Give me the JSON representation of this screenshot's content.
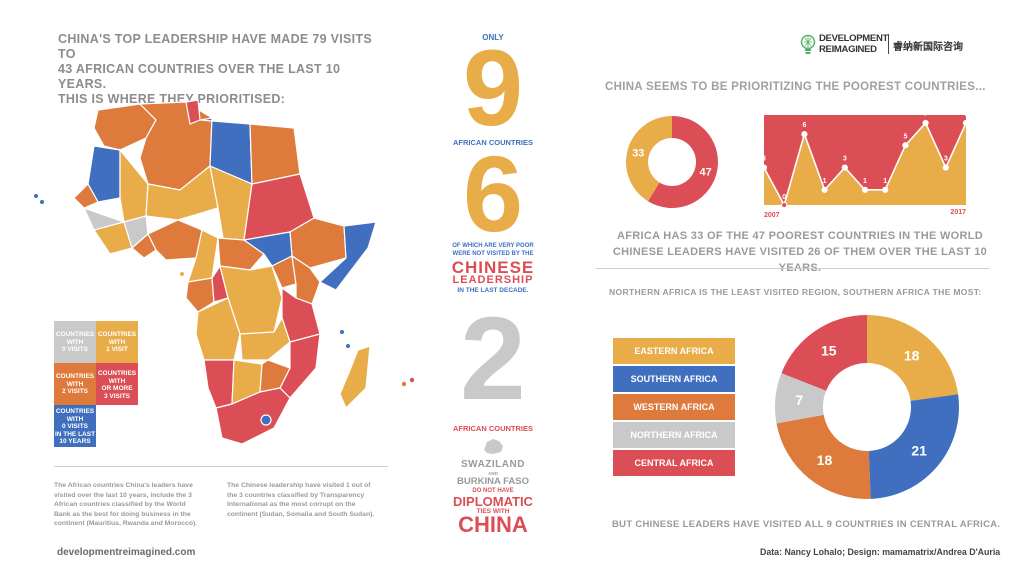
{
  "colors": {
    "yellow": "#E8AC48",
    "orange": "#DE7A3B",
    "red": "#DC4E56",
    "blue": "#3F6FBE",
    "gray": "#C9C9C9",
    "heading_gray": "#8c8c8c",
    "text_gray": "#7a7a7a"
  },
  "left": {
    "title_lines": [
      "CHINA'S TOP LEADERSHIP HAVE MADE 79 VISITS TO",
      "43 AFRICAN COUNTRIES OVER THE LAST 10 YEARS.",
      "THIS IS WHERE THEY PRIORITISED:"
    ],
    "legend": [
      {
        "label_lines": [
          "COUNTRIES",
          "WITH",
          "0 VISITS"
        ],
        "color": "#C9C9C9"
      },
      {
        "label_lines": [
          "COUNTRIES",
          "WITH",
          "1 VISIT"
        ],
        "color": "#E8AC48"
      },
      {
        "label_lines": [
          "COUNTRIES",
          "WITH",
          "2 VISITS"
        ],
        "color": "#DE7A3B"
      },
      {
        "label_lines": [
          "COUNTRIES",
          "WITH",
          "OR MORE",
          "3 VISITS"
        ],
        "color": "#DC4E56"
      },
      {
        "label_lines": [
          "COUNTRIES",
          "WITH",
          "0 VISITS",
          "IN THE LAST",
          "10 YEARS"
        ],
        "color": "#3F6FBE"
      }
    ],
    "note1_lines": [
      "The African countries China's leaders have",
      "visited over the last 10 years, include the 3",
      "African countries classified by the World",
      "Bank as the best for doing business in the",
      "continent (Mauritius, Rwanda and Morocco)."
    ],
    "note2_lines": [
      "The Chinese leadership have visited 1 out of",
      "the 3 countries classified by Transparency",
      "International as the most corrupt on the",
      "continent (Sudan, Somalia and South Sudan)."
    ],
    "website": "developmentreimagined.com"
  },
  "middle": {
    "only": "ONLY",
    "big1": "9",
    "label1": "AFRICAN COUNTRIES",
    "big2": "6",
    "poor_lines": [
      "OF WHICH ARE VERY POOR",
      "WERE NOT VISITED BY THE"
    ],
    "chinese": "CHINESE",
    "leadership": "LEADERSHIP",
    "last_decade": "IN THE LAST DECADE.",
    "big3": "2",
    "label3": "AFRICAN COUNTRIES",
    "swaziland": "SWAZILAND",
    "and": "AND",
    "burkina": "BURKINA FASO",
    "do_not_have": "DO NOT HAVE",
    "diplomatic": "DIPLOMATIC",
    "ties_with": "TIES WITH",
    "china": "CHINA"
  },
  "right": {
    "logo_line1": "DEVELOPMENT",
    "logo_line2": "REIMAGINED",
    "logo_cn": "睿纳新国际咨询",
    "heading1": "CHINA SEEMS TO BE PRIORITIZING THE POOREST COUNTRIES...",
    "summary1_lines": [
      "AFRICA HAS 33 OF THE 47 POOREST COUNTRIES IN THE WORLD",
      "CHINESE LEADERS HAVE VISITED 26 OF THEM OVER THE LAST 10 YEARS."
    ],
    "heading2": "NORTHERN AFRICA IS THE LEAST VISITED REGION, SOUTHERN AFRICA THE MOST:",
    "footer_note": "BUT CHINESE LEADERS HAVE VISITED ALL 9 COUNTRIES IN CENTRAL AFRICA.",
    "credit": "Data: Nancy Lohalo; Design: mamamatrix/Andrea D'Auria"
  },
  "chart_data": [
    {
      "type": "pie",
      "donut": true,
      "labels": [
        "",
        ""
      ],
      "values": [
        47,
        33
      ],
      "colors": [
        "#DC4E56",
        "#E8AC48"
      ]
    },
    {
      "type": "area",
      "x": [
        2007,
        2008,
        2009,
        2010,
        2011,
        2012,
        2013,
        2014,
        2015,
        2016,
        2017
      ],
      "values": [
        3,
        0,
        6,
        1,
        3,
        1,
        1,
        5,
        7,
        3,
        7
      ],
      "xtick_labels": [
        "2007",
        "2017"
      ],
      "ylim": [
        0,
        7
      ],
      "fill_color": "#E8AC48",
      "background_color": "#DC4E56"
    },
    {
      "type": "pie",
      "donut": true,
      "labels": [
        "EASTERN AFRICA",
        "SOUTHERN AFRICA",
        "WESTERN AFRICA",
        "NORTHERN AFRICA",
        "CENTRAL AFRICA"
      ],
      "values": [
        18,
        21,
        18,
        7,
        15
      ],
      "colors": [
        "#E8AC48",
        "#3F6FBE",
        "#DE7A3B",
        "#C9C9C9",
        "#DC4E56"
      ]
    }
  ]
}
